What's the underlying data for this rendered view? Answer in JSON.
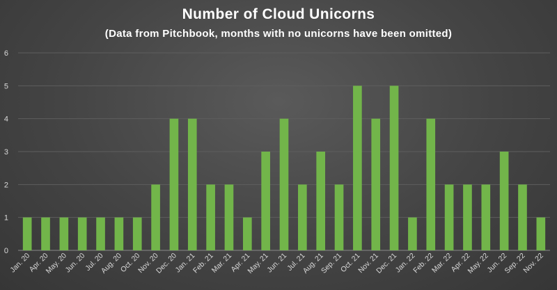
{
  "chart_data": {
    "type": "bar",
    "title": "Number of Cloud Unicorns",
    "subtitle": "(Data from Pitchbook, months with no unicorns have been omitted)",
    "xlabel": "",
    "ylabel": "",
    "ylim": [
      0,
      6
    ],
    "yticks": [
      0,
      1,
      2,
      3,
      4,
      5,
      6
    ],
    "grid": true,
    "legend": "none",
    "bar_color": "#72b54a",
    "categories": [
      "Jan. 20",
      "Apr. 20",
      "May. 20",
      "Jun. 20",
      "Jul. 20",
      "Aug. 20",
      "Oct. 20",
      "Nov. 20",
      "Dec. 20",
      "Jan. 21",
      "Feb. 21",
      "Mar. 21",
      "Apr. 21",
      "May. 21",
      "Jun. 21",
      "Jul. 21",
      "Aug. 21",
      "Sep. 21",
      "Oct. 21",
      "Nov. 21",
      "Dec. 21",
      "Jan. 22",
      "Feb. 22",
      "Mar. 22",
      "Apr. 22",
      "May. 22",
      "Jun. 22",
      "Sep. 22",
      "Nov. 22"
    ],
    "values": [
      1,
      1,
      1,
      1,
      1,
      1,
      1,
      2,
      4,
      4,
      2,
      2,
      1,
      3,
      4,
      2,
      3,
      2,
      5,
      4,
      5,
      1,
      4,
      2,
      2,
      2,
      3,
      2,
      1
    ]
  }
}
